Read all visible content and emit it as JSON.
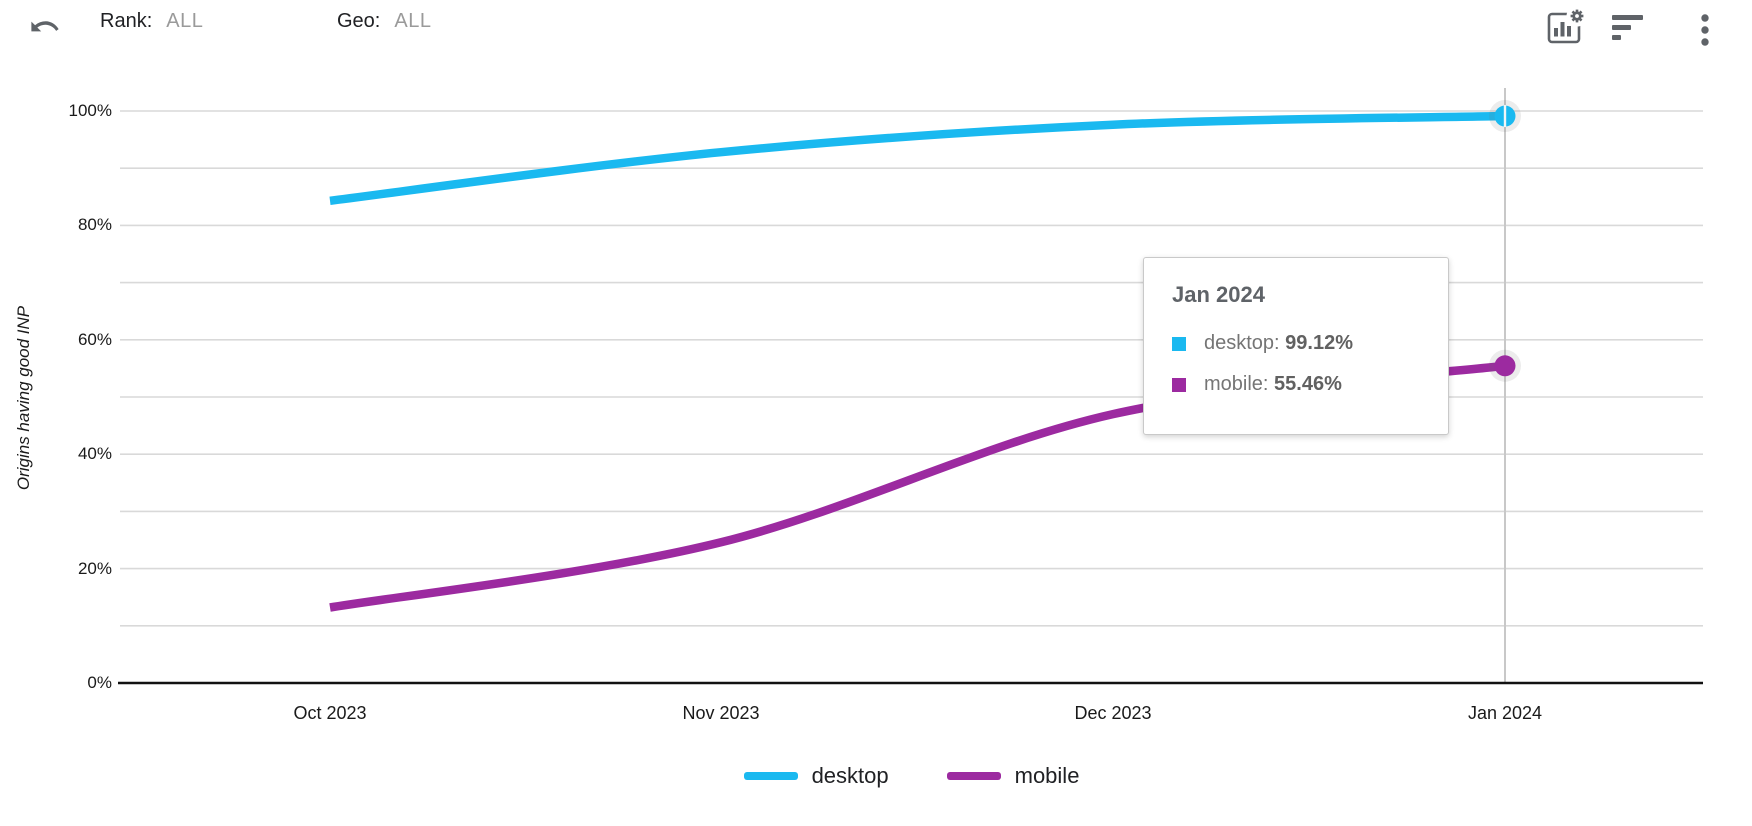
{
  "toolbar": {
    "undo_icon": "undo-arrow",
    "rank": {
      "label": "Rank:",
      "value": "ALL"
    },
    "geo": {
      "label": "Geo:",
      "value": "ALL"
    },
    "action_icons": [
      "chart-options",
      "filter",
      "more-vertical"
    ]
  },
  "colors": {
    "desktop": "#1ab9f0",
    "mobile": "#9c2aa0",
    "gridline": "#d9d9d9",
    "axis": "#111111",
    "crosshair": "#c8c8c8",
    "icon": "#5f6368",
    "text": "#1a1a1a",
    "muted_text": "#9a9a9a",
    "tooltip_label": "#757575",
    "tooltip_value": "#616161"
  },
  "chart_data": {
    "type": "line",
    "title": "",
    "xlabel": "",
    "ylabel": "Origins having good INP",
    "x_categories": [
      "Oct 2023",
      "Nov 2023",
      "Dec 2023",
      "Jan 2024"
    ],
    "series": [
      {
        "name": "desktop",
        "color": "#1ab9f0",
        "values": [
          84.3,
          92.8,
          97.6,
          99.12
        ]
      },
      {
        "name": "mobile",
        "color": "#9c2aa0",
        "values": [
          13.2,
          24.6,
          47.0,
          55.46
        ]
      }
    ],
    "ylim": [
      0,
      100
    ],
    "y_tick_values": [
      0,
      20,
      40,
      60,
      80,
      100
    ],
    "y_tick_labels": [
      "0%",
      "20%",
      "40%",
      "60%",
      "80%",
      "100%"
    ],
    "grid_step_percent": 10,
    "grid_on": true,
    "legend_position": "bottom",
    "highlighted_x": "Jan 2024"
  },
  "tooltip": {
    "title": "Jan 2024",
    "rows": [
      {
        "series": "desktop",
        "value": "99.12%"
      },
      {
        "series": "mobile",
        "value": "55.46%"
      }
    ]
  }
}
